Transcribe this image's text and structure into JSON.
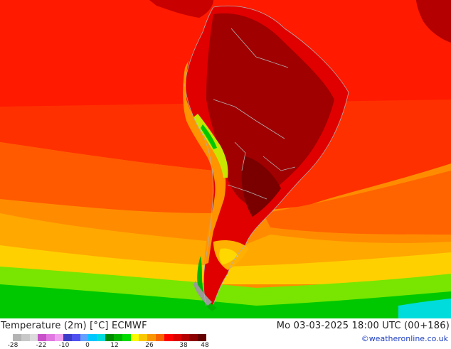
{
  "map": {
    "title": "Temperature (2m) [°C] ECMWF",
    "valid_time": "Mo 03-03-2025 18:00 UTC (00+186)",
    "credit": "©weatheronline.co.uk"
  },
  "legend": {
    "ticks": [
      "-28",
      "-22",
      "-10",
      "0",
      "12",
      "26",
      "38",
      "48"
    ],
    "colors": [
      "#b4b4b4",
      "#c8c8c8",
      "#dcdcdc",
      "#c850c8",
      "#e178e1",
      "#f0a0f0",
      "#3c3cc8",
      "#5050f0",
      "#64a0ff",
      "#00c8ff",
      "#00dcdc",
      "#008c00",
      "#00b400",
      "#00dc00",
      "#fafa00",
      "#fac800",
      "#fa9600",
      "#fa6400",
      "#ff0000",
      "#dc0000",
      "#b40000",
      "#8c0000",
      "#640000"
    ]
  },
  "regions": {
    "hottest_color": "#a00000",
    "hot_color": "#e80000",
    "warm_color": "#ff4a00",
    "orange_color": "#ff8c00",
    "yellow_color": "#ffc800",
    "green_color": "#00c800",
    "cool_green_color": "#78e600"
  }
}
